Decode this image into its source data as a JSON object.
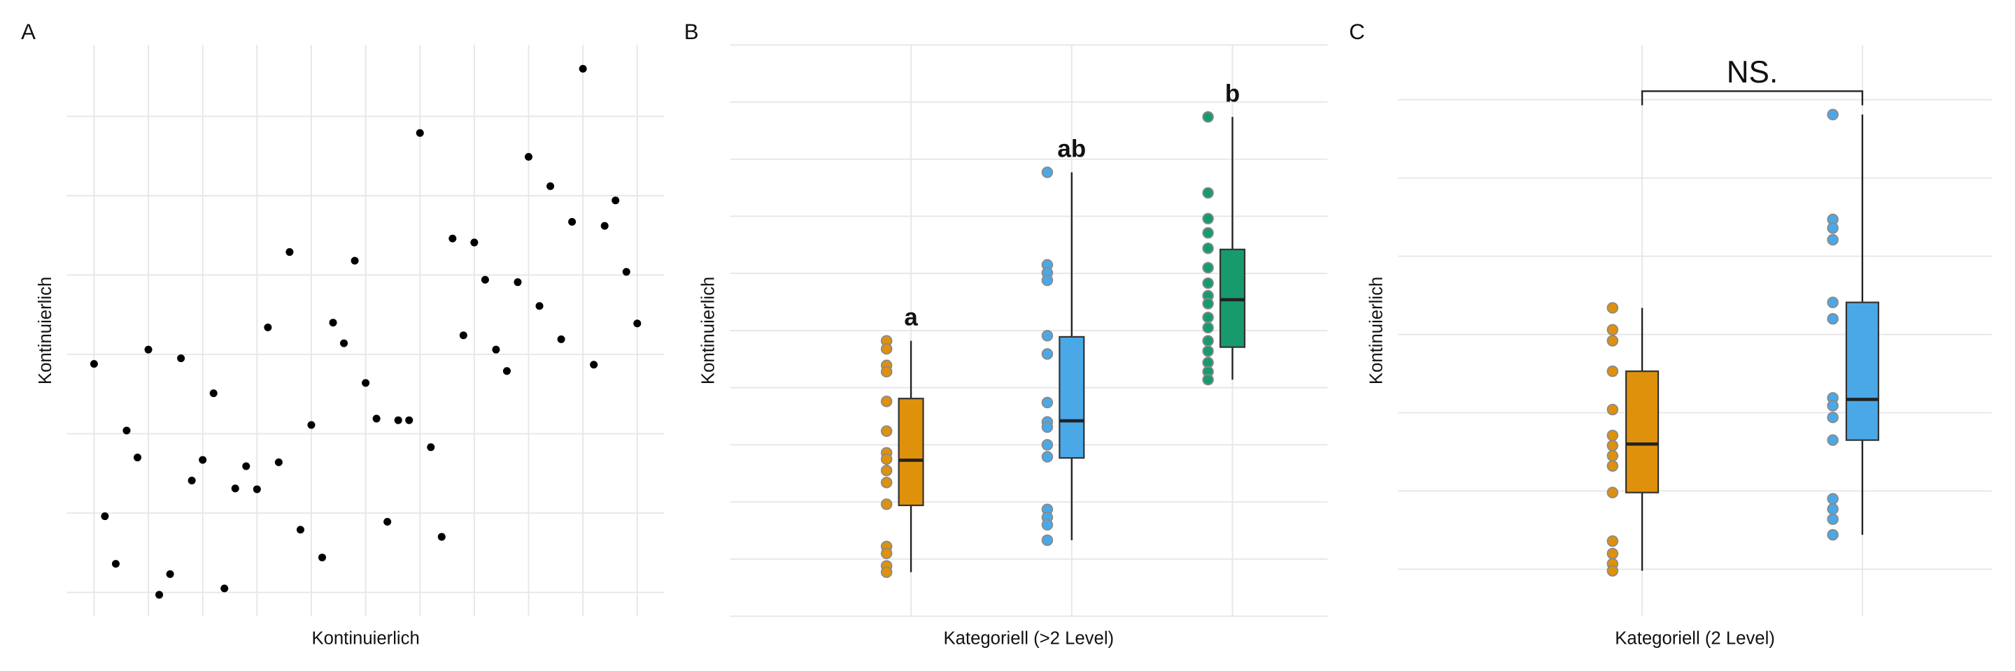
{
  "chart_data": [
    {
      "type": "scatter",
      "panel_label": "A",
      "x_label": "Kontinuierlich",
      "y_label": "Kontinuierlich",
      "color": "#000000",
      "grid": true,
      "xlim": [
        -0.5,
        10.5
      ],
      "ylim": [
        -0.3,
        6.9
      ],
      "xticks": [
        0,
        1,
        2,
        3,
        4,
        5,
        6,
        7,
        8,
        9,
        10
      ],
      "yticks": [
        0,
        1,
        2,
        3,
        4,
        5,
        6
      ],
      "x": [
        0,
        0.2,
        0.4,
        0.6,
        0.8,
        1,
        1.2,
        1.4,
        1.6,
        1.8,
        2,
        2.2,
        2.4,
        2.6,
        2.8,
        3,
        3.2,
        3.4,
        3.6,
        3.8,
        4,
        4.2,
        4.4,
        4.6,
        4.8,
        5,
        5.2,
        5.4,
        5.6,
        5.8,
        6,
        6.2,
        6.4,
        6.6,
        6.8,
        7,
        7.2,
        7.4,
        7.6,
        7.8,
        8,
        8.2,
        8.4,
        8.6,
        8.8,
        9,
        9.2,
        9.4,
        9.6,
        9.8,
        10
      ],
      "y": [
        2.88,
        0.96,
        0.36,
        2.04,
        1.7,
        3.06,
        -0.03,
        0.23,
        2.95,
        1.41,
        1.67,
        2.51,
        0.05,
        1.31,
        1.59,
        1.3,
        3.34,
        1.64,
        4.29,
        0.79,
        2.11,
        0.44,
        3.4,
        3.14,
        4.18,
        2.64,
        2.19,
        0.89,
        2.17,
        2.17,
        5.79,
        1.83,
        0.7,
        4.46,
        3.24,
        4.41,
        3.94,
        3.06,
        2.79,
        3.91,
        5.49,
        3.61,
        5.12,
        3.19,
        4.67,
        6.6,
        2.87,
        4.62,
        4.94,
        4.04,
        3.39
      ]
    },
    {
      "type": "box",
      "panel_label": "B",
      "x_label": "Kategoriell (>2 Level)",
      "y_label": "Kontinuierlich",
      "grid": true,
      "ylim": [
        0,
        10
      ],
      "yticks": [
        0,
        1,
        2,
        3,
        4,
        5,
        6,
        7,
        8,
        9,
        10
      ],
      "boxes": [
        {
          "label": "a",
          "color": "#E0910B",
          "whisker_low": 0.77,
          "q1": 1.94,
          "median": 2.73,
          "q3": 3.81,
          "whisker_high": 4.82,
          "points": [
            4.82,
            4.68,
            4.39,
            4.28,
            3.76,
            3.24,
            2.86,
            2.75,
            2.55,
            2.34,
            1.96,
            1.22,
            1.1,
            0.88,
            0.77
          ]
        },
        {
          "label": "ab",
          "color": "#4BA8E6",
          "whisker_low": 1.33,
          "q1": 2.77,
          "median": 3.42,
          "q3": 4.89,
          "whisker_high": 7.77,
          "points": [
            7.77,
            6.15,
            6.01,
            5.88,
            4.91,
            4.59,
            3.74,
            3.4,
            3.31,
            3.0,
            2.79,
            1.87,
            1.73,
            1.6,
            1.33
          ]
        },
        {
          "label": "b",
          "color": "#179B6C",
          "whisker_low": 4.14,
          "q1": 4.71,
          "median": 5.54,
          "q3": 6.42,
          "whisker_high": 8.74,
          "points": [
            8.74,
            7.41,
            6.96,
            6.71,
            6.44,
            6.1,
            5.83,
            5.61,
            5.47,
            5.23,
            5.05,
            4.82,
            4.64,
            4.44,
            4.28,
            4.14
          ]
        }
      ]
    },
    {
      "type": "box",
      "panel_label": "C",
      "x_label": "Kategoriell (2 Level)",
      "y_label": "Kontinuierlich",
      "grid": true,
      "annotation": "NS.",
      "ylim": [
        -0.6,
        6.7
      ],
      "yticks": [
        0,
        1,
        2,
        3,
        4,
        5,
        6
      ],
      "boxes": [
        {
          "color": "#E0910B",
          "whisker_low": -0.02,
          "q1": 0.98,
          "median": 1.6,
          "q3": 2.53,
          "whisker_high": 3.34,
          "points": [
            3.34,
            3.06,
            2.92,
            2.53,
            2.04,
            1.71,
            1.58,
            1.45,
            1.32,
            0.98,
            0.36,
            0.2,
            0.07,
            -0.02
          ]
        },
        {
          "color": "#4BA8E6",
          "whisker_low": 0.44,
          "q1": 1.65,
          "median": 2.17,
          "q3": 3.41,
          "whisker_high": 5.81,
          "points": [
            5.81,
            4.47,
            4.36,
            4.21,
            3.41,
            3.2,
            2.19,
            2.09,
            1.94,
            1.65,
            0.9,
            0.77,
            0.64,
            0.44
          ]
        }
      ]
    }
  ]
}
